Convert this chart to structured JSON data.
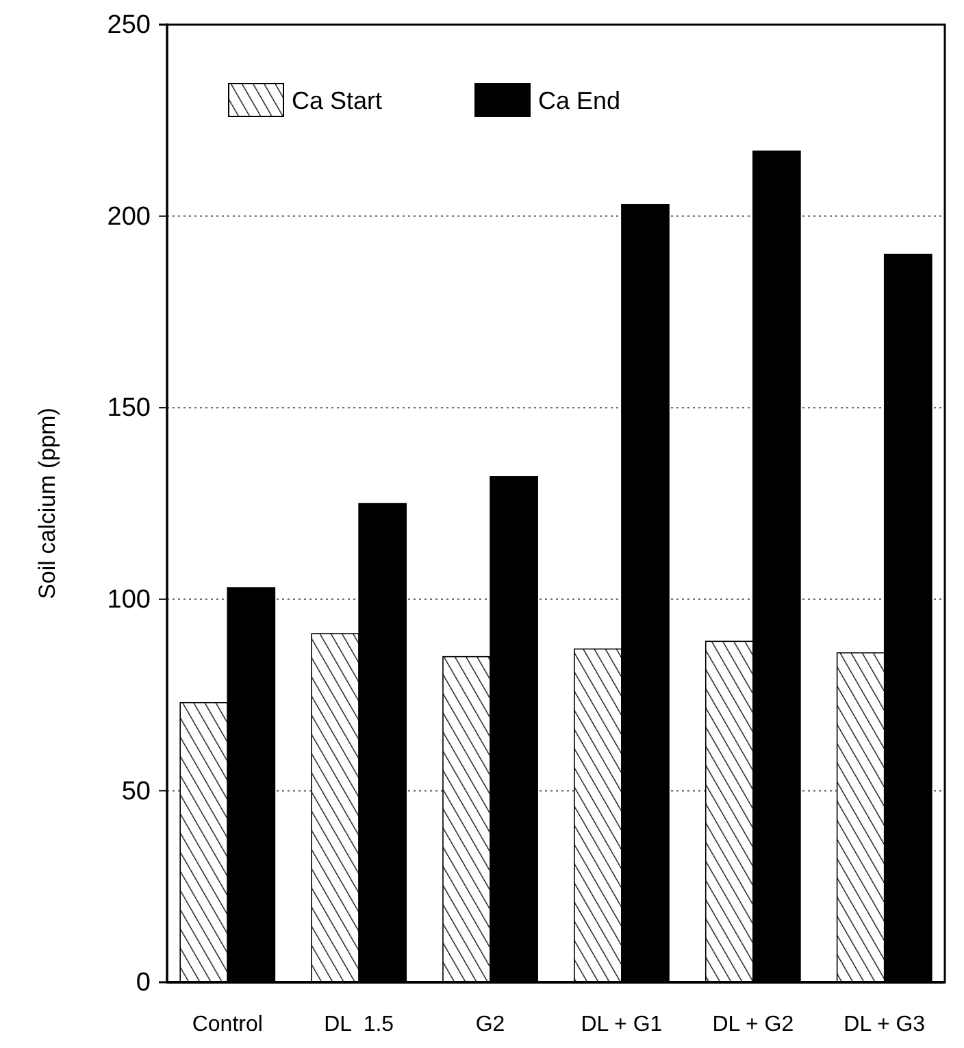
{
  "chart_data": {
    "type": "bar",
    "ylabel": "Soil calcium (ppm)",
    "categories": [
      "Control",
      "DL  1.5",
      "G2",
      "DL + G1",
      "DL + G2",
      "DL + G3"
    ],
    "series": [
      {
        "name": "Ca Start",
        "color": "#000000",
        "values": [
          73,
          91,
          85,
          87,
          89,
          86
        ]
      },
      {
        "name": "Ca End",
        "color": "#000000",
        "values": [
          103,
          125,
          132,
          203,
          217,
          190
        ]
      }
    ],
    "ylim": [
      0,
      250
    ],
    "yticks": [
      0,
      50,
      100,
      150,
      200,
      250
    ],
    "grid": "y",
    "legend": "top left"
  }
}
